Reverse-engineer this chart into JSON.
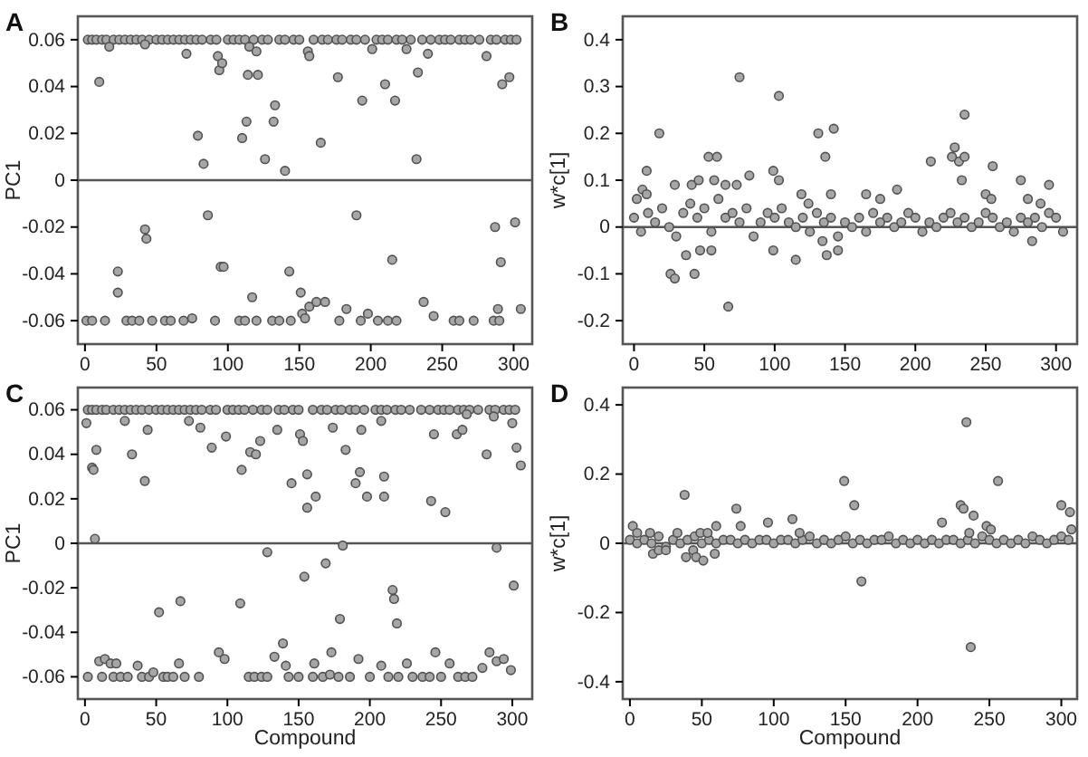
{
  "chart_data": [
    {
      "type": "scatter",
      "title": "A",
      "ylabel": "PC1",
      "xlim": [
        -5,
        313
      ],
      "xticks": [
        0,
        50,
        100,
        150,
        200,
        250,
        300
      ],
      "ylim": [
        -0.07,
        0.07
      ],
      "yticks": [
        -0.06,
        -0.04,
        -0.02,
        0,
        0.02,
        0.04,
        0.06
      ],
      "grid": false,
      "marker": "circle",
      "ref_lines": [
        {
          "axis": "y",
          "value": 0,
          "label": null
        }
      ],
      "series": [
        {
          "color": "#a6a6a6",
          "x": [
            2,
            5,
            8,
            12,
            15,
            20,
            24,
            28,
            32,
            36,
            40,
            45,
            50,
            54,
            58,
            62,
            66,
            70,
            74,
            78,
            82,
            88,
            92,
            100,
            104,
            108,
            112,
            118,
            124,
            128,
            136,
            140,
            146,
            150,
            160,
            166,
            170,
            176,
            180,
            186,
            190,
            196,
            204,
            208,
            212,
            218,
            222,
            228,
            236,
            242,
            248,
            252,
            256,
            262,
            266,
            270,
            276,
            284,
            288,
            294,
            298,
            302
          ],
          "values": [
            0.06,
            0.06,
            0.06,
            0.06,
            0.06,
            0.06,
            0.06,
            0.06,
            0.06,
            0.06,
            0.06,
            0.06,
            0.06,
            0.06,
            0.06,
            0.06,
            0.06,
            0.06,
            0.06,
            0.06,
            0.06,
            0.06,
            0.06,
            0.06,
            0.06,
            0.06,
            0.06,
            0.06,
            0.06,
            0.06,
            0.06,
            0.06,
            0.06,
            0.06,
            0.06,
            0.06,
            0.06,
            0.06,
            0.06,
            0.06,
            0.06,
            0.06,
            0.06,
            0.06,
            0.06,
            0.06,
            0.06,
            0.06,
            0.06,
            0.06,
            0.06,
            0.06,
            0.06,
            0.06,
            0.06,
            0.06,
            0.06,
            0.06,
            0.06,
            0.06,
            0.06,
            0.06
          ]
        },
        {
          "color": "#a6a6a6",
          "x": [
            1,
            5,
            14,
            29,
            33,
            38,
            47,
            56,
            60,
            69,
            91,
            108,
            112,
            120,
            131,
            136,
            144,
            178,
            193,
            205,
            212,
            218,
            258,
            262,
            272,
            286,
            290
          ],
          "values": [
            -0.06,
            -0.06,
            -0.06,
            -0.06,
            -0.06,
            -0.06,
            -0.06,
            -0.06,
            -0.06,
            -0.06,
            -0.06,
            -0.06,
            -0.06,
            -0.06,
            -0.06,
            -0.06,
            -0.06,
            -0.06,
            -0.06,
            -0.06,
            -0.06,
            -0.06,
            -0.06,
            -0.06,
            -0.06,
            -0.06,
            -0.06
          ]
        },
        {
          "color": "#a6a6a6",
          "x": [
            10,
            17,
            42,
            71,
            79,
            83,
            86,
            93,
            94,
            96,
            95,
            97,
            110,
            113,
            114,
            115,
            120,
            121,
            117,
            126,
            132,
            133,
            140,
            143,
            151,
            152,
            154,
            156,
            157,
            157,
            162,
            165,
            168,
            177,
            183,
            190,
            194,
            198,
            201,
            210,
            215,
            217,
            225,
            232,
            233,
            237,
            240,
            244,
            281,
            287,
            291,
            289,
            292,
            297,
            301,
            305,
            42,
            43,
            23,
            23,
            75
          ],
          "values": [
            0.042,
            0.057,
            0.058,
            0.054,
            0.019,
            0.007,
            -0.015,
            0.053,
            0.047,
            0.05,
            -0.037,
            -0.037,
            0.018,
            0.025,
            0.045,
            0.057,
            0.055,
            0.045,
            -0.05,
            0.009,
            0.025,
            0.032,
            0.004,
            -0.039,
            -0.048,
            -0.057,
            -0.059,
            0.055,
            0.053,
            -0.054,
            -0.052,
            0.016,
            -0.052,
            0.044,
            -0.055,
            -0.015,
            0.034,
            -0.057,
            0.056,
            0.041,
            -0.034,
            0.034,
            0.056,
            0.009,
            0.046,
            -0.052,
            0.054,
            -0.058,
            0.053,
            -0.02,
            -0.035,
            -0.055,
            0.041,
            0.044,
            -0.018,
            -0.055,
            -0.021,
            -0.025,
            -0.048,
            -0.039,
            -0.059
          ]
        }
      ]
    },
    {
      "type": "scatter",
      "title": "B",
      "ylabel": "w*c[1]",
      "xlim": [
        -8,
        315
      ],
      "xticks": [
        0,
        50,
        100,
        150,
        200,
        250,
        300
      ],
      "ylim": [
        -0.25,
        0.45
      ],
      "yticks": [
        -0.2,
        -0.1,
        0,
        0.1,
        0.2,
        0.3,
        0.4
      ],
      "grid": false,
      "marker": "circle",
      "ref_lines": [
        {
          "axis": "y",
          "value": 0,
          "label": null
        }
      ],
      "series": [
        {
          "color": "#a6a6a6",
          "x": [
            0,
            5,
            10,
            15,
            20,
            25,
            30,
            35,
            40,
            45,
            50,
            55,
            60,
            65,
            70,
            75,
            80,
            85,
            90,
            95,
            100,
            105,
            110,
            115,
            120,
            125,
            130,
            135,
            140,
            145,
            150,
            155,
            160,
            165,
            170,
            175,
            180,
            185,
            190,
            195,
            200,
            205,
            210,
            215,
            220,
            225,
            230,
            235,
            240,
            245,
            250,
            255,
            260,
            265,
            270,
            275,
            280,
            285,
            290,
            295,
            300,
            305
          ],
          "values": [
            0.02,
            -0.01,
            0.03,
            0.01,
            0.04,
            0,
            -0.02,
            0.03,
            0.05,
            0.02,
            0.04,
            -0.01,
            0.06,
            0.02,
            0.03,
            0.01,
            0.04,
            -0.02,
            0.01,
            0.03,
            0.02,
            0.04,
            0.01,
            0,
            0.02,
            -0.01,
            0.03,
            0.01,
            0.02,
            -0.02,
            0.01,
            0,
            0.02,
            -0.01,
            0.03,
            0.01,
            0.02,
            0,
            0.01,
            0.03,
            0.02,
            -0.01,
            0.01,
            0,
            0.02,
            0.03,
            0.01,
            0.02,
            0,
            0.01,
            0.03,
            0.02,
            0,
            0.01,
            -0.01,
            0.02,
            0.01,
            0.02,
            0,
            0.03,
            0.02,
            -0.01
          ]
        },
        {
          "color": "#a6a6a6",
          "x": [
            75,
            103,
            18,
            131,
            142,
            136,
            235,
            228,
            231,
            235,
            233,
            226,
            211,
            255,
            275,
            295,
            53,
            59,
            9,
            99,
            103,
            82,
            29,
            41,
            46,
            57,
            65,
            73,
            2,
            6,
            9,
            26,
            29,
            43,
            37,
            47,
            55,
            67,
            99,
            115,
            137,
            145,
            134,
            283,
            175,
            187,
            165,
            140,
            250,
            254,
            280,
            289,
            119,
            124
          ],
          "values": [
            0.32,
            0.28,
            0.2,
            0.2,
            0.21,
            0.15,
            0.24,
            0.17,
            0.14,
            0.15,
            0.1,
            0.15,
            0.14,
            0.13,
            0.1,
            0.09,
            0.15,
            0.15,
            0.12,
            0.12,
            0.1,
            0.11,
            0.09,
            0.09,
            0.1,
            0.1,
            0.09,
            0.09,
            0.06,
            0.08,
            0.07,
            -0.1,
            -0.11,
            -0.1,
            -0.06,
            -0.05,
            -0.05,
            -0.17,
            -0.05,
            -0.07,
            -0.06,
            -0.05,
            -0.03,
            -0.03,
            0.06,
            0.08,
            0.07,
            0.07,
            0.07,
            0.06,
            0.06,
            0.05,
            0.07,
            0.05
          ]
        }
      ]
    },
    {
      "type": "scatter",
      "title": "C",
      "ylabel": "PC1",
      "xlabel": "Compound",
      "xlim": [
        -5,
        314
      ],
      "xticks": [
        0,
        50,
        100,
        150,
        200,
        250,
        300
      ],
      "ylim": [
        -0.07,
        0.07
      ],
      "yticks": [
        -0.06,
        -0.04,
        -0.02,
        0,
        0.02,
        0.04,
        0.06
      ],
      "grid": false,
      "marker": "circle",
      "ref_lines": [
        {
          "axis": "y",
          "value": 0,
          "label": null
        }
      ],
      "series": [
        {
          "color": "#a6a6a6",
          "x": [
            2,
            5,
            8,
            12,
            15,
            20,
            24,
            28,
            32,
            36,
            40,
            45,
            50,
            54,
            58,
            62,
            66,
            70,
            74,
            78,
            82,
            88,
            92,
            100,
            104,
            108,
            112,
            118,
            124,
            128,
            136,
            140,
            146,
            150,
            160,
            166,
            170,
            176,
            180,
            186,
            190,
            196,
            204,
            208,
            212,
            218,
            222,
            228,
            236,
            242,
            248,
            252,
            256,
            262,
            266,
            270,
            276,
            284,
            288,
            294,
            298,
            302
          ],
          "values": [
            0.06,
            0.06,
            0.06,
            0.06,
            0.06,
            0.06,
            0.06,
            0.06,
            0.06,
            0.06,
            0.06,
            0.06,
            0.06,
            0.06,
            0.06,
            0.06,
            0.06,
            0.06,
            0.06,
            0.06,
            0.06,
            0.06,
            0.06,
            0.06,
            0.06,
            0.06,
            0.06,
            0.06,
            0.06,
            0.06,
            0.06,
            0.06,
            0.06,
            0.06,
            0.06,
            0.06,
            0.06,
            0.06,
            0.06,
            0.06,
            0.06,
            0.06,
            0.06,
            0.06,
            0.06,
            0.06,
            0.06,
            0.06,
            0.06,
            0.06,
            0.06,
            0.06,
            0.06,
            0.06,
            0.06,
            0.06,
            0.06,
            0.06,
            0.06,
            0.06,
            0.06,
            0.06
          ]
        },
        {
          "color": "#a6a6a6",
          "x": [
            2,
            12,
            20,
            25,
            30,
            40,
            45,
            55,
            58,
            62,
            70,
            80,
            115,
            119,
            124,
            128,
            143,
            150,
            160,
            167,
            178,
            186,
            200,
            213,
            220,
            230,
            237,
            242,
            250,
            262,
            267,
            272
          ],
          "values": [
            -0.06,
            -0.06,
            -0.06,
            -0.06,
            -0.06,
            -0.06,
            -0.06,
            -0.06,
            -0.06,
            -0.06,
            -0.06,
            -0.06,
            -0.06,
            -0.06,
            -0.06,
            -0.06,
            -0.06,
            -0.06,
            -0.06,
            -0.06,
            -0.06,
            -0.06,
            -0.06,
            -0.06,
            -0.06,
            -0.06,
            -0.06,
            -0.06,
            -0.06,
            -0.06,
            -0.06,
            -0.06
          ]
        },
        {
          "color": "#a6a6a6",
          "x": [
            1,
            5,
            6,
            8,
            7,
            10,
            14,
            18,
            22,
            28,
            33,
            37,
            42,
            44,
            52,
            48,
            67,
            66,
            73,
            81,
            89,
            94,
            98,
            99,
            109,
            110,
            116,
            120,
            123,
            128,
            133,
            135,
            139,
            141,
            145,
            151,
            153,
            154,
            156,
            156,
            162,
            161,
            169,
            173,
            172,
            174,
            179,
            181,
            183,
            190,
            193,
            194,
            192,
            198,
            208,
            210,
            210,
            208,
            216,
            217,
            219,
            226,
            246,
            245,
            243,
            253,
            256,
            261,
            265,
            268,
            279,
            282,
            284,
            287,
            289,
            289,
            294,
            300,
            301,
            303,
            306,
            299
          ],
          "values": [
            0.054,
            0.034,
            0.033,
            0.042,
            0.002,
            -0.053,
            -0.052,
            -0.054,
            -0.054,
            0.055,
            0.04,
            -0.055,
            0.028,
            0.051,
            -0.031,
            -0.058,
            -0.026,
            -0.054,
            0.055,
            0.052,
            0.043,
            -0.049,
            -0.052,
            0.048,
            -0.027,
            0.033,
            0.041,
            0.04,
            0.046,
            -0.004,
            -0.051,
            0.051,
            -0.045,
            -0.055,
            0.027,
            0.049,
            0.046,
            -0.015,
            0.031,
            0.016,
            0.021,
            -0.054,
            -0.009,
            -0.049,
            -0.059,
            0.052,
            -0.034,
            -0.001,
            0.042,
            0.027,
            0.032,
            0.051,
            -0.052,
            0.021,
            -0.055,
            0.03,
            0.021,
            0.055,
            -0.021,
            -0.025,
            -0.036,
            -0.054,
            -0.049,
            0.049,
            0.019,
            0.014,
            -0.054,
            0.049,
            0.051,
            0.058,
            -0.056,
            0.04,
            -0.049,
            0.057,
            -0.002,
            -0.053,
            -0.052,
            0.054,
            -0.019,
            0.043,
            0.035,
            -0.057
          ]
        }
      ]
    },
    {
      "type": "scatter",
      "title": "D",
      "ylabel": "w*c[1]",
      "xlabel": "Compound",
      "xlim": [
        -5,
        311
      ],
      "xticks": [
        0,
        50,
        100,
        150,
        200,
        250,
        300
      ],
      "ylim": [
        -0.45,
        0.45
      ],
      "yticks": [
        -0.4,
        -0.2,
        0,
        0.2,
        0.4
      ],
      "grid": false,
      "marker": "circle",
      "ref_lines": [
        {
          "axis": "y",
          "value": 0,
          "label": null
        }
      ],
      "series": [
        {
          "color": "#a6a6a6",
          "x": [
            0,
            5,
            10,
            15,
            20,
            25,
            30,
            35,
            40,
            45,
            50,
            55,
            60,
            65,
            70,
            75,
            80,
            85,
            90,
            95,
            100,
            105,
            110,
            115,
            120,
            125,
            130,
            135,
            140,
            145,
            150,
            155,
            160,
            165,
            170,
            175,
            180,
            185,
            190,
            195,
            200,
            205,
            210,
            215,
            220,
            225,
            230,
            235,
            240,
            245,
            250,
            255,
            260,
            265,
            270,
            275,
            280,
            285,
            290,
            295,
            300,
            305
          ],
          "values": [
            0.01,
            0,
            0.01,
            0,
            0.02,
            -0.01,
            0.01,
            0,
            0.01,
            0.02,
            0,
            0.01,
            0,
            0.01,
            0.01,
            0,
            0.01,
            0,
            0.01,
            0.01,
            0,
            0.01,
            0.01,
            0,
            0.01,
            0.02,
            0,
            0.01,
            0,
            0.01,
            0.02,
            0,
            0.01,
            0,
            0.01,
            0.01,
            0.02,
            0,
            0.01,
            0,
            0.01,
            0,
            0.01,
            0,
            0.01,
            0.01,
            0,
            0.01,
            0,
            0.02,
            0.01,
            0,
            0.01,
            0,
            0.01,
            0,
            0.02,
            0.01,
            0,
            0.01,
            0.02,
            0.01
          ]
        },
        {
          "color": "#a6a6a6",
          "x": [
            2,
            5,
            14,
            16,
            20,
            25,
            33,
            38,
            39,
            44,
            46,
            51,
            49,
            54,
            59,
            60,
            74,
            77,
            96,
            113,
            118,
            149,
            156,
            161,
            217,
            230,
            232,
            234,
            236,
            239,
            237,
            248,
            251,
            256,
            300,
            306,
            307
          ],
          "values": [
            0.05,
            0.03,
            0.03,
            -0.03,
            -0.02,
            -0.02,
            0.03,
            0.14,
            -0.04,
            -0.02,
            -0.04,
            -0.05,
            0.03,
            0.03,
            -0.03,
            0.05,
            0.1,
            0.05,
            0.06,
            0.07,
            0.03,
            0.18,
            0.11,
            -0.11,
            0.06,
            0.11,
            0.1,
            0.35,
            0.03,
            0.08,
            -0.3,
            0.05,
            0.04,
            0.18,
            0.11,
            0.09,
            0.04
          ]
        }
      ]
    }
  ]
}
